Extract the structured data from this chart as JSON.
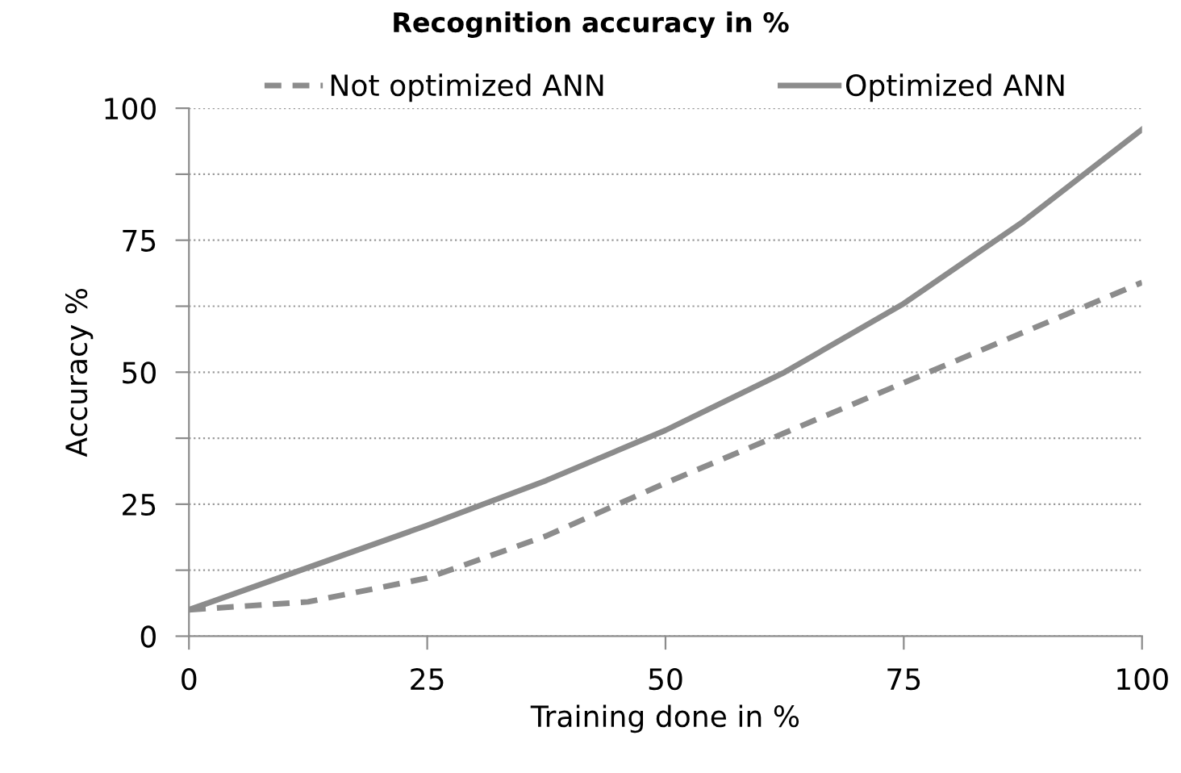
{
  "chart_data": {
    "type": "line",
    "title": "Recognition accuracy in %",
    "xlabel": "Training done in %",
    "ylabel": "Accuracy %",
    "x": [
      0,
      12.5,
      25,
      37.5,
      50,
      62.5,
      75,
      87.5,
      100
    ],
    "series": [
      {
        "name": "Not optimized ANN",
        "color": "#8c8c8c",
        "line_style": "dashed",
        "values": [
          5,
          6.5,
          11,
          19,
          29,
          38.5,
          48,
          57.5,
          67
        ]
      },
      {
        "name": "Optimized ANN",
        "color": "#8c8c8c",
        "line_style": "solid",
        "values": [
          5,
          13,
          21,
          29.5,
          39,
          50,
          63,
          78.5,
          96
        ]
      }
    ],
    "xlim": [
      0,
      100
    ],
    "xticks": [
      0,
      25,
      50,
      75,
      100
    ],
    "ylim": [
      0,
      100
    ],
    "yticks": [
      0,
      {
        "value": 12.5,
        "label": null
      },
      25,
      {
        "value": 37.5,
        "label": null
      },
      50,
      {
        "value": 62.5,
        "label": null
      },
      75,
      {
        "value": 87.5,
        "label": null
      },
      100
    ],
    "grid": "y",
    "legend": "top",
    "marker": "none"
  }
}
